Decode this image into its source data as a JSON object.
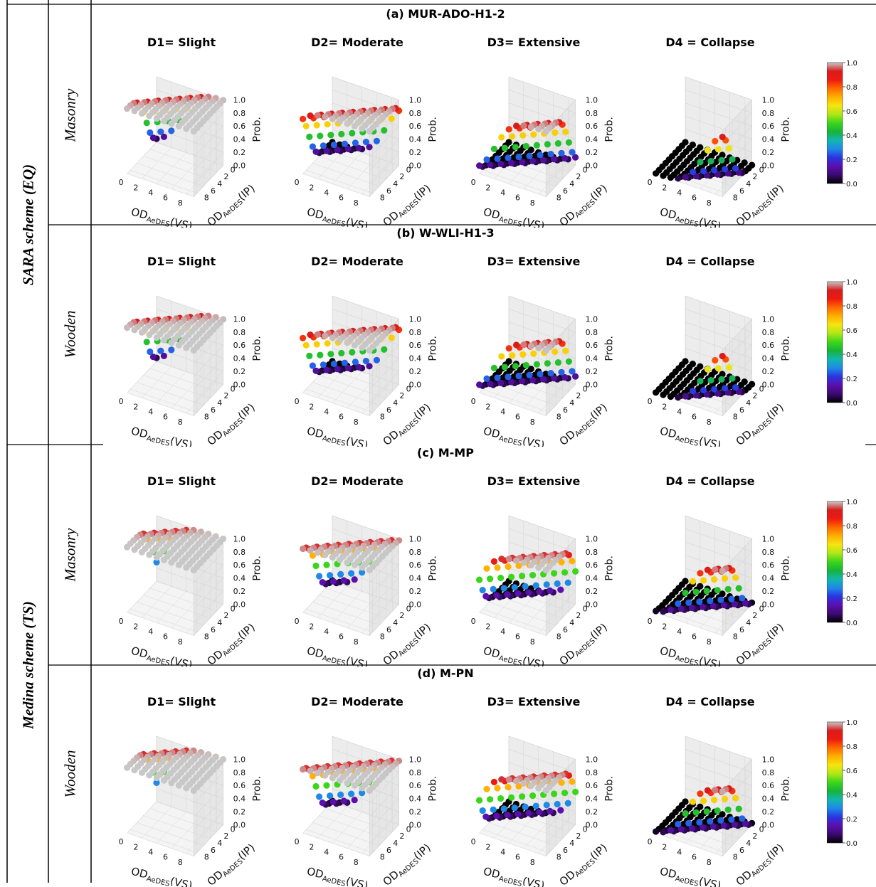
{
  "schemes": [
    {
      "label": "SARA scheme (EQ)",
      "rows": [
        0,
        1
      ]
    },
    {
      "label": "Medina scheme (TS)",
      "rows": [
        2,
        3
      ]
    }
  ],
  "damage_states": [
    "D1= Slight",
    "D2= Moderate",
    "D3= Extensive",
    "D4 = Collapse"
  ],
  "rows": [
    {
      "building_type": "Masonry",
      "title": "(a) MUR-ADO-H1-2"
    },
    {
      "building_type": "Wooden",
      "title": "(b) W-WLI-H1-3"
    },
    {
      "building_type": "Masonry",
      "title": "(c) M-MP"
    },
    {
      "building_type": "Wooden",
      "title": "(d) M-PN"
    }
  ],
  "axes": {
    "x_label": "OD",
    "x_sub": "AeDES",
    "x_suffix": "(VS)",
    "y_label": "OD",
    "y_sub": "AeDES",
    "y_suffix": "(IP)",
    "z_label": "Prob.",
    "x_ticks": [
      "0",
      "2",
      "4",
      "6",
      "8"
    ],
    "y_ticks": [
      "0",
      "2",
      "4",
      "6",
      "8"
    ],
    "z_ticks": [
      "0.0",
      "0.2",
      "0.4",
      "0.6",
      "0.8",
      "1.0"
    ],
    "colorbar_ticks": [
      "0.0",
      "0.2",
      "0.4",
      "0.6",
      "0.8",
      "1.0"
    ]
  },
  "colors": {
    "colormap": [
      "#000000",
      "#3b0a6e",
      "#5b0fae",
      "#2a35e0",
      "#1f88e8",
      "#12b6b0",
      "#17b33a",
      "#3ad61a",
      "#aee617",
      "#f5e50f",
      "#ffb000",
      "#ff6a00",
      "#ee1a10",
      "#d81c1c",
      "#c8c8c8"
    ]
  },
  "chart_data": {
    "type": "scatter",
    "x_range": [
      0,
      9
    ],
    "y_range": [
      0,
      9
    ],
    "z_range": [
      0,
      1
    ],
    "grid": true,
    "colorbar": "right",
    "grid_points": [
      0,
      1,
      2,
      3,
      4,
      5,
      6,
      7,
      8,
      9
    ]
  }
}
